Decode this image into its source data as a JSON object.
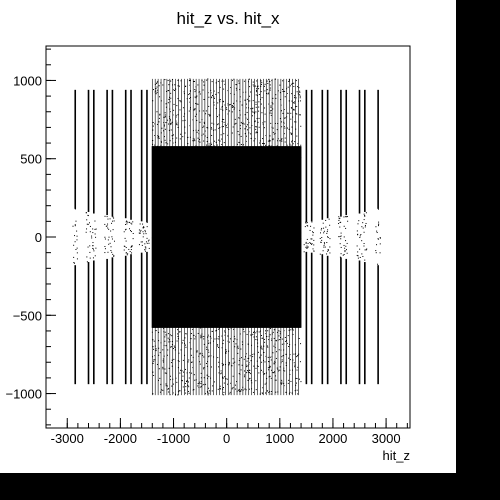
{
  "colors": {
    "canvas": "#ffffff",
    "outer": "#000000",
    "marker": "#000000"
  },
  "chart_data": {
    "type": "scatter",
    "title": "hit_z vs. hit_x",
    "xlabel": "hit_z",
    "ylabel": "",
    "xlim": [
      -3400,
      3450
    ],
    "ylim": [
      -1220,
      1220
    ],
    "xticks": [
      -3000,
      -2000,
      -1000,
      0,
      1000,
      2000,
      3000
    ],
    "yticks": [
      -1000,
      -500,
      0,
      500,
      1000
    ],
    "grid": false,
    "legend": "none",
    "regions": [
      {
        "name": "barrel",
        "x_range": [
          -1400,
          1400
        ],
        "y_range": [
          -580,
          580
        ],
        "density": "very high"
      },
      {
        "name": "outer barrel",
        "x_range": [
          -1400,
          1400
        ],
        "y_range": [
          -1010,
          1010
        ],
        "density": "medium"
      },
      {
        "name": "endcap strips",
        "x_range": [
          -2900,
          2900
        ],
        "y_range": [
          -940,
          940
        ],
        "density": "lines at discrete z"
      }
    ],
    "endcap_z": [
      -2850,
      -2600,
      -2500,
      -2250,
      -2150,
      -1900,
      -1800,
      -1600,
      -1500,
      1500,
      1600,
      1800,
      1900,
      2150,
      2250,
      2500,
      2600,
      2850
    ],
    "endcap_inner_r": [
      180,
      160,
      150,
      140,
      130,
      120,
      110,
      100,
      95,
      95,
      100,
      110,
      120,
      130,
      140,
      150,
      160,
      180
    ],
    "endcap_outer_r": 940
  }
}
